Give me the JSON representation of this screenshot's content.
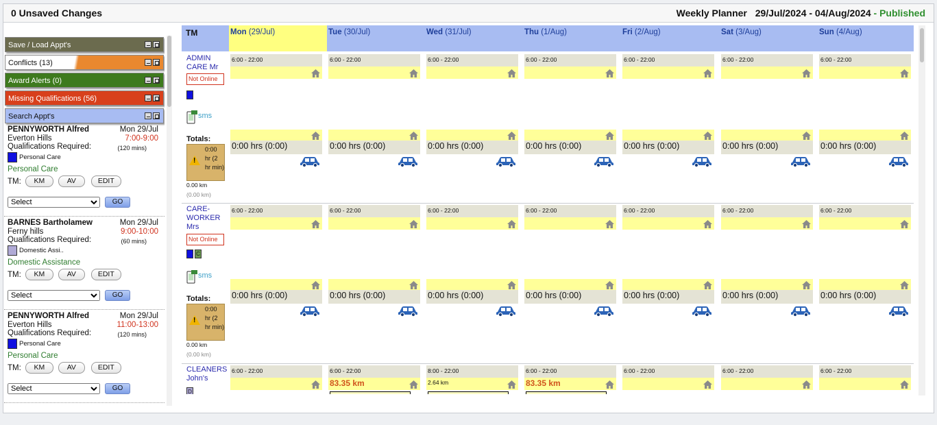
{
  "topbar": {
    "unsaved": "0 Unsaved Changes",
    "planner_label": "Weekly Planner",
    "date_range": "29/Jul/2024 - 04/Aug/2024",
    "status_sep": " - ",
    "status": "Published"
  },
  "panels": [
    {
      "label": "Save / Load Appt's",
      "color": "#6b6b4e"
    },
    {
      "label": "Conflicts (13)",
      "color": "#e9882f"
    },
    {
      "label": "Award Alerts (0)",
      "color": "#3e7a1d"
    },
    {
      "label": "Missing Qualifications (56)",
      "color": "#d8401c"
    },
    {
      "label": "Search Appt's",
      "color": "#a8bcf2"
    }
  ],
  "appointments": [
    {
      "name": "PENNYWORTH Alfred",
      "date": "Mon 29/Jul",
      "location": "Everton Hills",
      "time": "7:00-9:00",
      "qual_label": "Qualifications Required:",
      "mins": "(120 mins)",
      "qual": "Personal Care",
      "qual_color": "#1010e0",
      "service": "Personal Care",
      "tm_label": "TM:",
      "km": "KM",
      "av": "AV",
      "edit": "EDIT",
      "select": "Select",
      "go": "GO"
    },
    {
      "name": "BARNES Bartholamew",
      "date": "Mon 29/Jul",
      "location": "Ferny hills",
      "time": "9:00-10:00",
      "qual_label": "Qualifications Required:",
      "mins": "(60 mins)",
      "qual": "Domestic Assi..",
      "qual_color": "#b0aad6",
      "service": "Domestic Assistance",
      "tm_label": "TM:",
      "km": "KM",
      "av": "AV",
      "edit": "EDIT",
      "select": "Select",
      "go": "GO"
    },
    {
      "name": "PENNYWORTH Alfred",
      "date": "Mon 29/Jul",
      "location": "Everton Hills",
      "time": "11:00-13:00",
      "qual_label": "Qualifications Required:",
      "mins": "(120 mins)",
      "qual": "Personal Care",
      "qual_color": "#1010e0",
      "service": "Personal Care",
      "tm_label": "TM:",
      "km": "KM",
      "av": "AV",
      "edit": "EDIT",
      "select": "Select",
      "go": "GO"
    }
  ],
  "grid": {
    "tm_header": "TM",
    "days": [
      {
        "name": "Mon",
        "date": "(29/Jul)"
      },
      {
        "name": "Tue",
        "date": "(30/Jul)"
      },
      {
        "name": "Wed",
        "date": "(31/Jul)"
      },
      {
        "name": "Thu",
        "date": "(1/Aug)"
      },
      {
        "name": "Fri",
        "date": "(2/Aug)"
      },
      {
        "name": "Sat",
        "date": "(3/Aug)"
      },
      {
        "name": "Sun",
        "date": "(4/Aug)"
      }
    ],
    "workers": [
      {
        "name": "ADMIN CARE Mr",
        "status": "Not Online",
        "quals": [
          {
            "letter": "",
            "color": "#1010e0"
          }
        ],
        "sms": "sms",
        "totals_label": "Totals:",
        "warn": "0:00 hr (2 hr min)",
        "km": "0.00 km",
        "km_paren": "(0.00 km)",
        "cells": [
          {
            "hours": "6:00 - 22:00",
            "total": "0:00 hrs (0:00)"
          },
          {
            "hours": "6:00 - 22:00",
            "total": "0:00 hrs (0:00)"
          },
          {
            "hours": "6:00 - 22:00",
            "total": "0:00 hrs (0:00)"
          },
          {
            "hours": "6:00 - 22:00",
            "total": "0:00 hrs (0:00)"
          },
          {
            "hours": "6:00 - 22:00",
            "total": "0:00 hrs (0:00)"
          },
          {
            "hours": "6:00 - 22:00",
            "total": "0:00 hrs (0:00)"
          },
          {
            "hours": "6:00 - 22:00",
            "total": "0:00 hrs (0:00)"
          }
        ]
      },
      {
        "name": "CARE-WORKER Mrs",
        "status": "Not Online",
        "quals": [
          {
            "letter": "",
            "color": "#1010e0"
          },
          {
            "letter": "C",
            "color": "#6b9a52"
          }
        ],
        "sms": "sms",
        "totals_label": "Totals:",
        "warn": "0:00 hr (2 hr min)",
        "km": "0.00 km",
        "km_paren": "(0.00 km)",
        "cells": [
          {
            "hours": "6:00 - 22:00",
            "total": "0:00 hrs (0:00)"
          },
          {
            "hours": "6:00 - 22:00",
            "total": "0:00 hrs (0:00)"
          },
          {
            "hours": "6:00 - 22:00",
            "total": "0:00 hrs (0:00)"
          },
          {
            "hours": "6:00 - 22:00",
            "total": "0:00 hrs (0:00)"
          },
          {
            "hours": "6:00 - 22:00",
            "total": "0:00 hrs (0:00)"
          },
          {
            "hours": "6:00 - 22:00",
            "total": "0:00 hrs (0:00)"
          },
          {
            "hours": "6:00 - 22:00",
            "total": "0:00 hrs (0:00)"
          }
        ]
      },
      {
        "name": "CLEANERS John's",
        "quals": [
          {
            "letter": "D",
            "color": "#b0aad6"
          }
        ],
        "cells": [
          {
            "hours": "6:00 - 22:00",
            "km": "",
            "km_small": ""
          },
          {
            "hours": "6:00 - 22:00",
            "km": "83.35 km",
            "km_small": ""
          },
          {
            "hours": "8:00 - 22:00",
            "km": "",
            "km_small": "2.64 km"
          },
          {
            "hours": "6:00 - 22:00",
            "km": "83.35 km",
            "km_small": ""
          },
          {
            "hours": "6:00 - 22:00",
            "km": "",
            "km_small": ""
          },
          {
            "hours": "6:00 - 22:00",
            "km": "",
            "km_small": ""
          },
          {
            "hours": "6:00 - 22:00",
            "km": "",
            "km_small": ""
          }
        ]
      }
    ]
  },
  "icons": {
    "house": "house-icon",
    "car": "car-icon",
    "sms": "sms-phone-icon",
    "warning": "warning-icon"
  }
}
